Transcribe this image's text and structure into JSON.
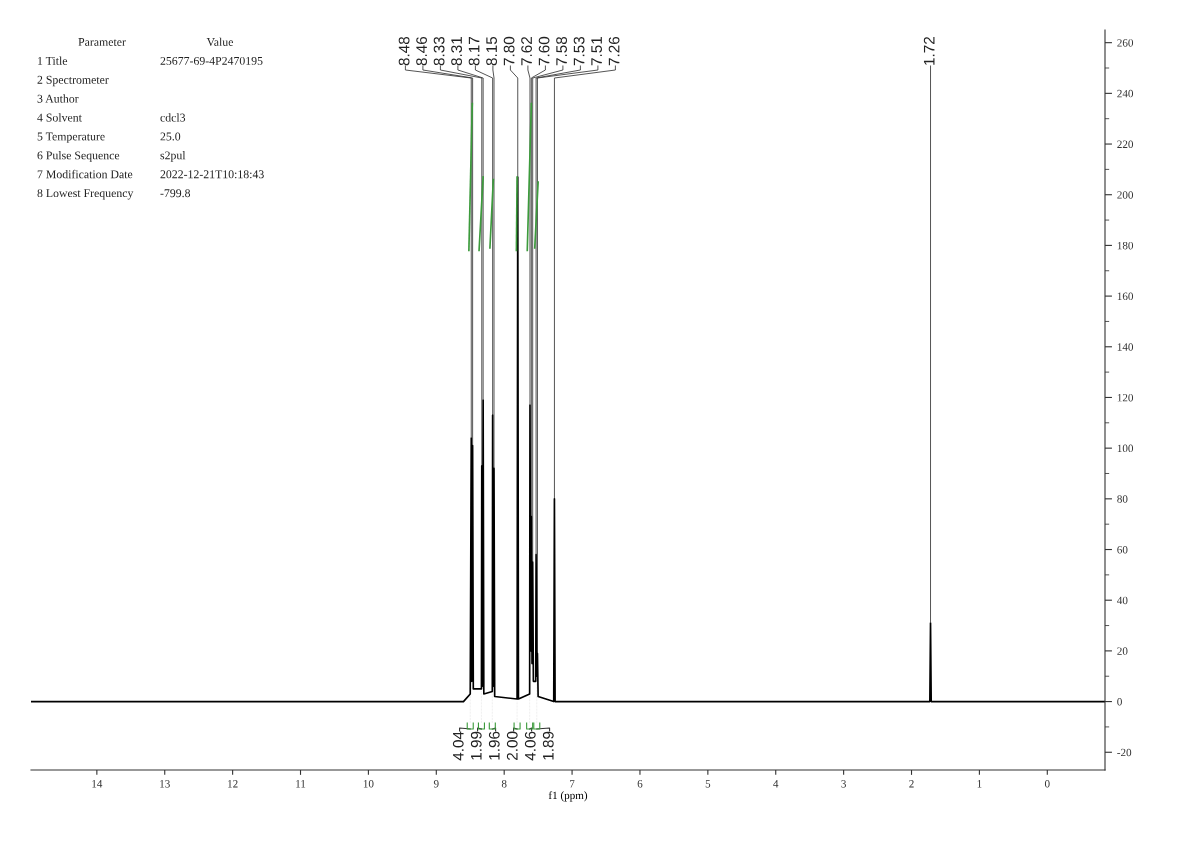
{
  "chart_data": {
    "type": "line",
    "xlabel": "f1 (ppm)",
    "xlim": [
      14.97,
      -0.85
    ],
    "xticks": [
      14,
      13,
      12,
      11,
      10,
      9,
      8,
      7,
      6,
      5,
      4,
      3,
      2,
      1,
      0
    ],
    "ylim": [
      -27,
      265
    ],
    "yticks": [
      -20,
      0,
      20,
      40,
      60,
      80,
      100,
      120,
      140,
      160,
      180,
      200,
      220,
      240,
      260
    ],
    "series": [
      {
        "color": "#000000",
        "x": [
          14.97,
          8.6,
          8.5,
          8.485,
          8.478,
          8.465,
          8.455,
          8.335,
          8.33,
          8.322,
          8.31,
          8.3,
          8.175,
          8.17,
          8.162,
          8.15,
          8.14,
          7.81,
          7.8,
          7.79,
          7.625,
          7.62,
          7.61,
          7.6,
          7.59,
          7.58,
          7.57,
          7.535,
          7.53,
          7.52,
          7.51,
          7.5,
          7.27,
          7.26,
          7.25,
          1.73,
          1.72,
          1.71,
          -0.85
        ],
        "values": [
          0,
          0,
          3,
          104,
          8,
          101,
          5,
          5,
          93,
          6,
          119,
          3,
          4,
          113,
          6,
          92,
          2,
          1,
          207,
          1,
          3,
          117,
          20,
          73,
          15,
          55,
          8,
          8,
          58,
          10,
          19,
          2,
          0,
          80,
          0,
          0,
          31,
          0,
          0
        ]
      },
      {
        "color": "#3c9b3c",
        "x": [
          8.52,
          8.47
        ],
        "values": [
          178,
          236
        ]
      },
      {
        "color": "#3c9b3c",
        "x": [
          8.37,
          8.31
        ],
        "values": [
          178,
          207
        ]
      },
      {
        "color": "#3c9b3c",
        "x": [
          8.21,
          8.16
        ],
        "values": [
          179,
          206
        ]
      },
      {
        "color": "#3c9b3c",
        "x": [
          7.82,
          7.81
        ],
        "values": [
          178,
          207
        ]
      },
      {
        "color": "#3c9b3c",
        "x": [
          7.66,
          7.6
        ],
        "values": [
          178,
          236
        ]
      },
      {
        "color": "#3c9b3c",
        "x": [
          7.55,
          7.5
        ],
        "values": [
          179,
          205
        ]
      }
    ],
    "annotations": [
      "Parameter\tValue",
      "1 Title\t25677-69-4P2470195",
      "2 Spectrometer",
      "3 Author",
      "4 Solvent\tcdcl3",
      "5 Temperature\t25.0",
      "6 Pulse Sequence\ts2pul",
      "7 Modification Date\t2022-12-21T10:18:43",
      "8 Lowest Frequency\t-799.8",
      {
        "text": "8.48",
        "x": 8.485,
        "y": 104
      },
      {
        "text": "8.46",
        "x": 8.465,
        "y": 101
      },
      {
        "text": "8.33",
        "x": 8.33,
        "y": 93
      },
      {
        "text": "8.31",
        "x": 8.31,
        "y": 119
      },
      {
        "text": "8.17",
        "x": 8.17,
        "y": 113
      },
      {
        "text": "8.15",
        "x": 8.15,
        "y": 92
      },
      {
        "text": "7.80",
        "x": 7.8,
        "y": 207
      },
      {
        "text": "7.62",
        "x": 7.62,
        "y": 117
      },
      {
        "text": "7.60",
        "x": 7.6,
        "y": 73
      },
      {
        "text": "7.58",
        "x": 7.58,
        "y": 55
      },
      {
        "text": "7.53",
        "x": 7.53,
        "y": 58
      },
      {
        "text": "7.51",
        "x": 7.51,
        "y": 19
      },
      {
        "text": "7.26",
        "x": 7.26,
        "y": 80
      },
      {
        "text": "1.72",
        "x": 1.72,
        "y": 31
      },
      {
        "text": "4.04",
        "x": 8.5,
        "y": 3
      },
      {
        "text": "1.99",
        "x": 8.335,
        "y": 5
      },
      {
        "text": "1.96",
        "x": 8.175,
        "y": 4
      },
      {
        "text": "2.00",
        "x": 7.81,
        "y": 1
      },
      {
        "text": "4.06",
        "x": 7.625,
        "y": 3
      },
      {
        "text": "1.89",
        "x": 7.52,
        "y": 10
      }
    ]
  }
}
